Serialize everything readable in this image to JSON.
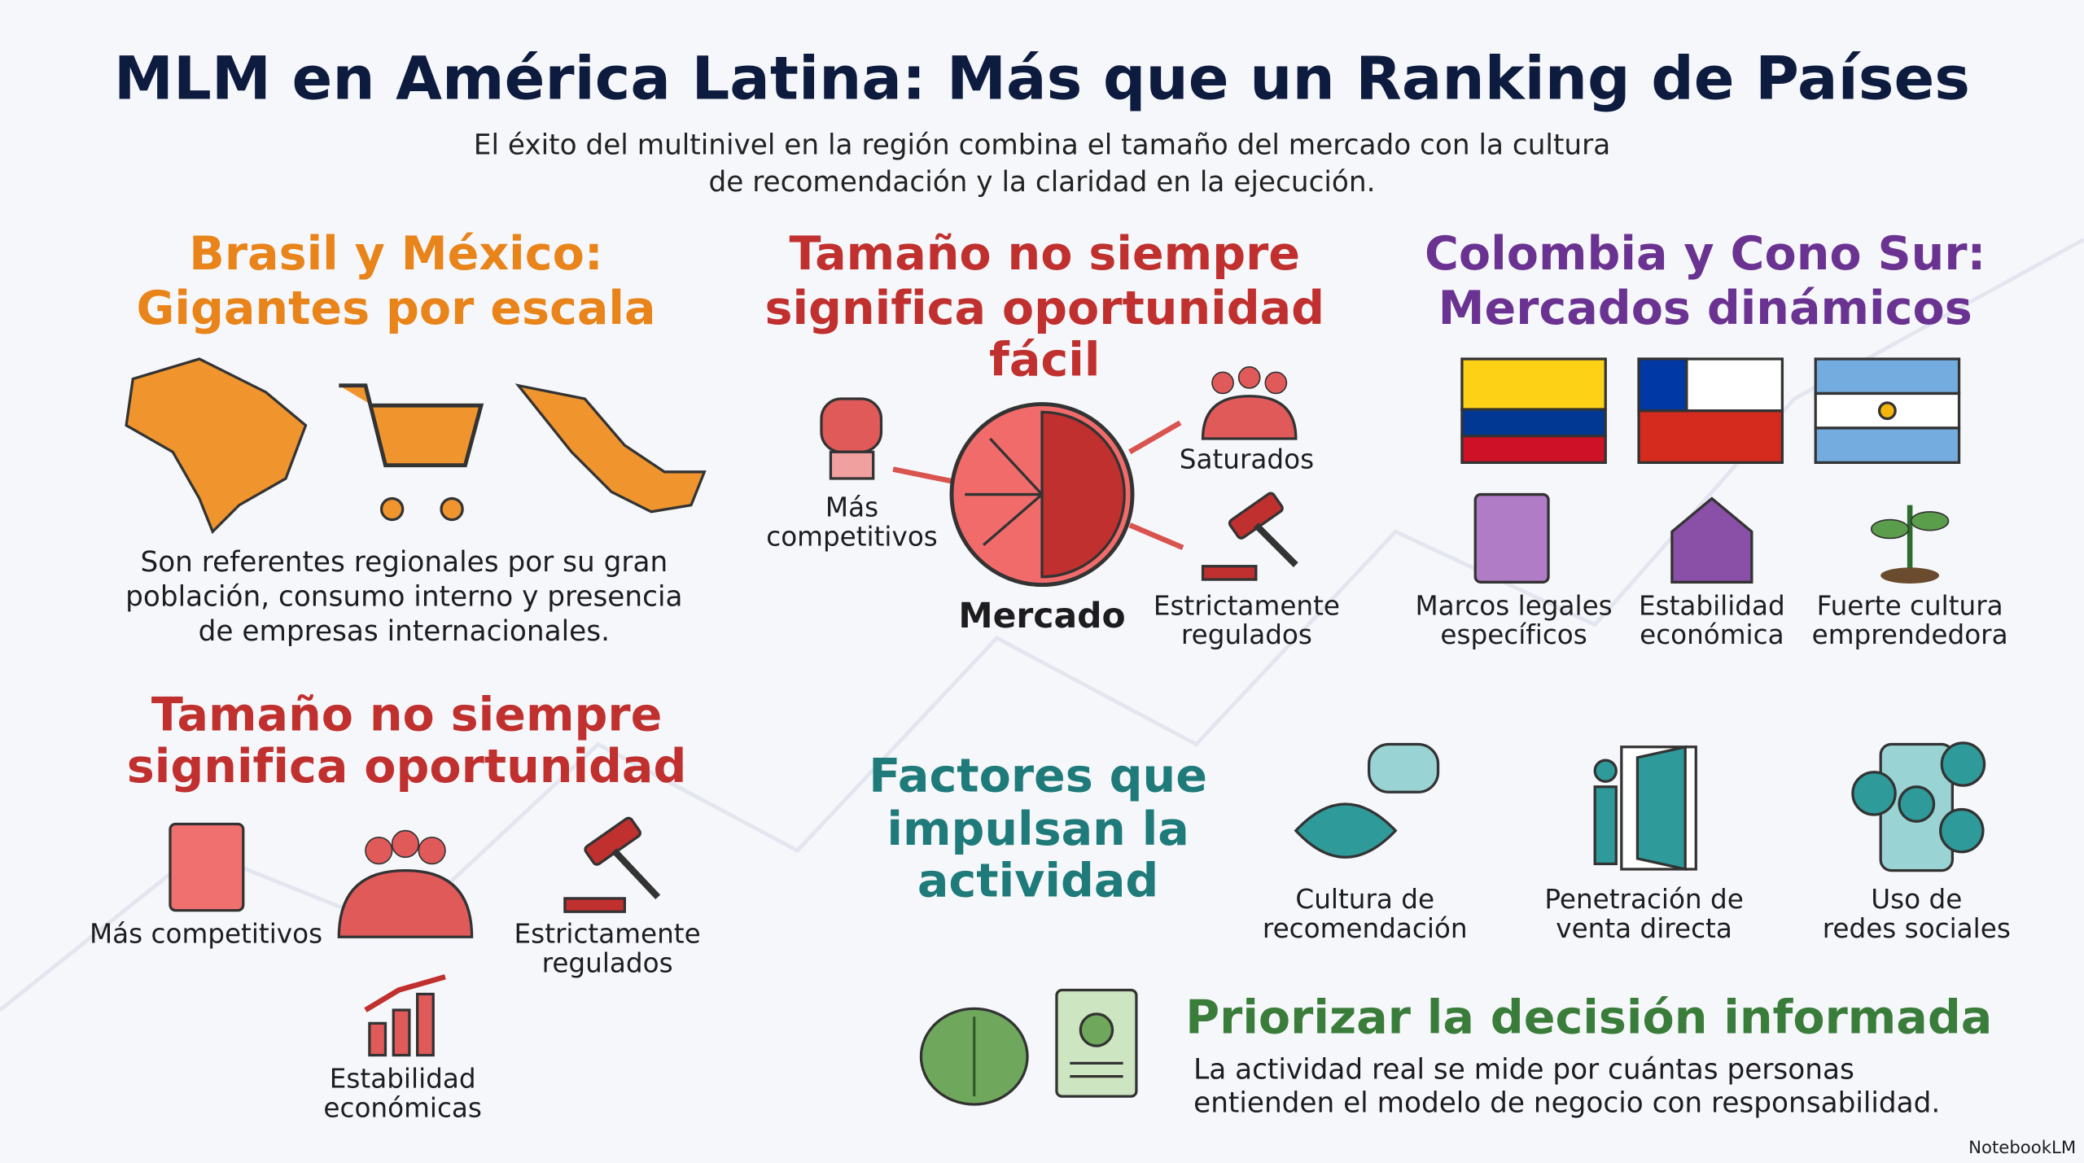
{
  "header": {
    "title": "MLM en América Latina: Más que un Ranking de Países",
    "subtitle_lines": [
      "El éxito del multinivel en la región combina el tamaño del mercado con la cultura",
      "de recomendación y la claridad en la ejecución."
    ]
  },
  "brasil_mexico": {
    "title_lines": [
      "Brasil y México:",
      "Gigantes por escala"
    ],
    "text_lines": [
      "Son referentes regionales por su gran",
      "población, consumo interno y presencia",
      "de empresas internacionales."
    ]
  },
  "tamano_facil": {
    "title_lines": [
      "Tamaño no siempre",
      "significa oportunidad",
      "fácil"
    ],
    "center": "Mercado",
    "labels": [
      [
        "Más",
        "competitivos"
      ],
      [
        "Saturados"
      ],
      [
        "Estrictamente",
        "regulados"
      ]
    ]
  },
  "colombia_cono_sur": {
    "title_lines": [
      "Colombia y Cono Sur:",
      "Mercados dinámicos"
    ],
    "labels": [
      [
        "Marcos legales",
        "específicos"
      ],
      [
        "Estabilidad",
        "económica"
      ],
      [
        "Fuerte cultura",
        "emprendedora"
      ]
    ]
  },
  "tamano": {
    "title_lines": [
      "Tamaño no siempre",
      "significa oportunidad"
    ],
    "labels": [
      [
        "Más competitivos"
      ],
      [
        "Estrictamente",
        "regulados"
      ],
      [
        "Estabilidad",
        "económicas"
      ]
    ]
  },
  "factores": {
    "title_lines": [
      "Factores que",
      "impulsan la",
      "actividad"
    ],
    "items": [
      [
        "Cultura de",
        "recomendación"
      ],
      [
        "Penetración de",
        "venta directa"
      ],
      [
        "Uso de",
        "redes sociales"
      ]
    ]
  },
  "priorizar": {
    "title": "Priorizar la decisión informada",
    "text_lines": [
      "La actividad real se mide por cuántas personas",
      "entienden el modelo de negocio con responsabilidad."
    ]
  },
  "footer": {
    "brand": "NotebookLM"
  }
}
